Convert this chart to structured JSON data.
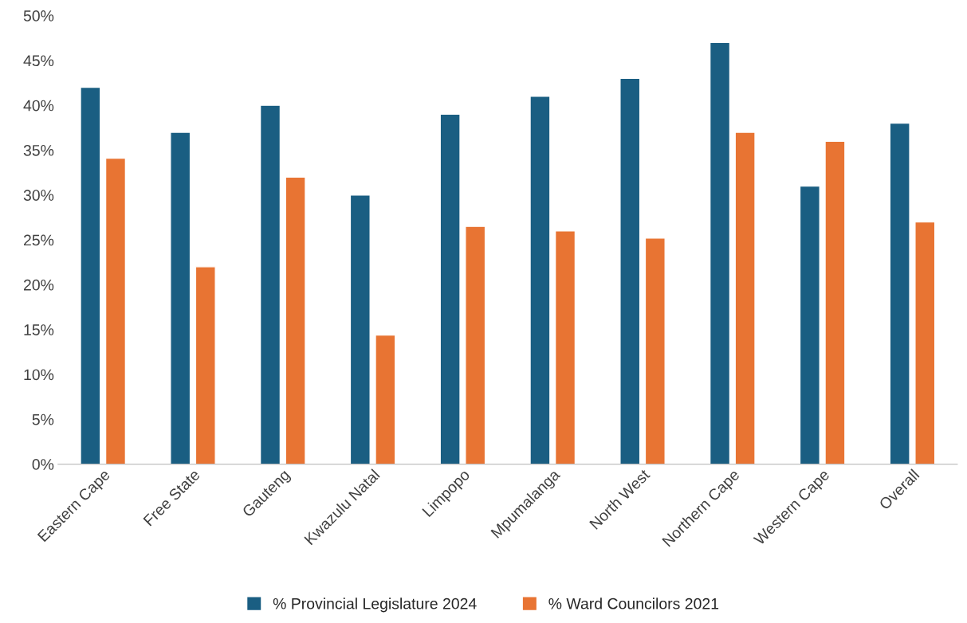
{
  "chart_data": {
    "type": "bar",
    "categories": [
      "Eastern Cape",
      "Free State",
      "Gauteng",
      "Kwazulu Natal",
      "Limpopo",
      "Mpumalanga",
      "North West",
      "Northern Cape",
      "Western Cape",
      "Overall"
    ],
    "series": [
      {
        "name": "% Provincial Legislature 2024",
        "color": "#1a5e82",
        "values": [
          42,
          37,
          40,
          30,
          39,
          41,
          43,
          47,
          31,
          38
        ]
      },
      {
        "name": "% Ward Councilors 2021",
        "color": "#e87433",
        "values": [
          34.1,
          22,
          32,
          14.4,
          26.5,
          26,
          25.2,
          37,
          36,
          27
        ]
      }
    ],
    "ylim": [
      0,
      50
    ],
    "yticks": [
      {
        "value": 0,
        "label": "0%"
      },
      {
        "value": 5,
        "label": "5%"
      },
      {
        "value": 10,
        "label": "10%"
      },
      {
        "value": 15,
        "label": "15%"
      },
      {
        "value": 20,
        "label": "20%"
      },
      {
        "value": 25,
        "label": "25%"
      },
      {
        "value": 30,
        "label": "30%"
      },
      {
        "value": 35,
        "label": "35%"
      },
      {
        "value": 40,
        "label": "40%"
      },
      {
        "value": 45,
        "label": "45%"
      },
      {
        "value": 50,
        "label": "50%"
      }
    ],
    "grid": false,
    "legend": "bottom"
  }
}
